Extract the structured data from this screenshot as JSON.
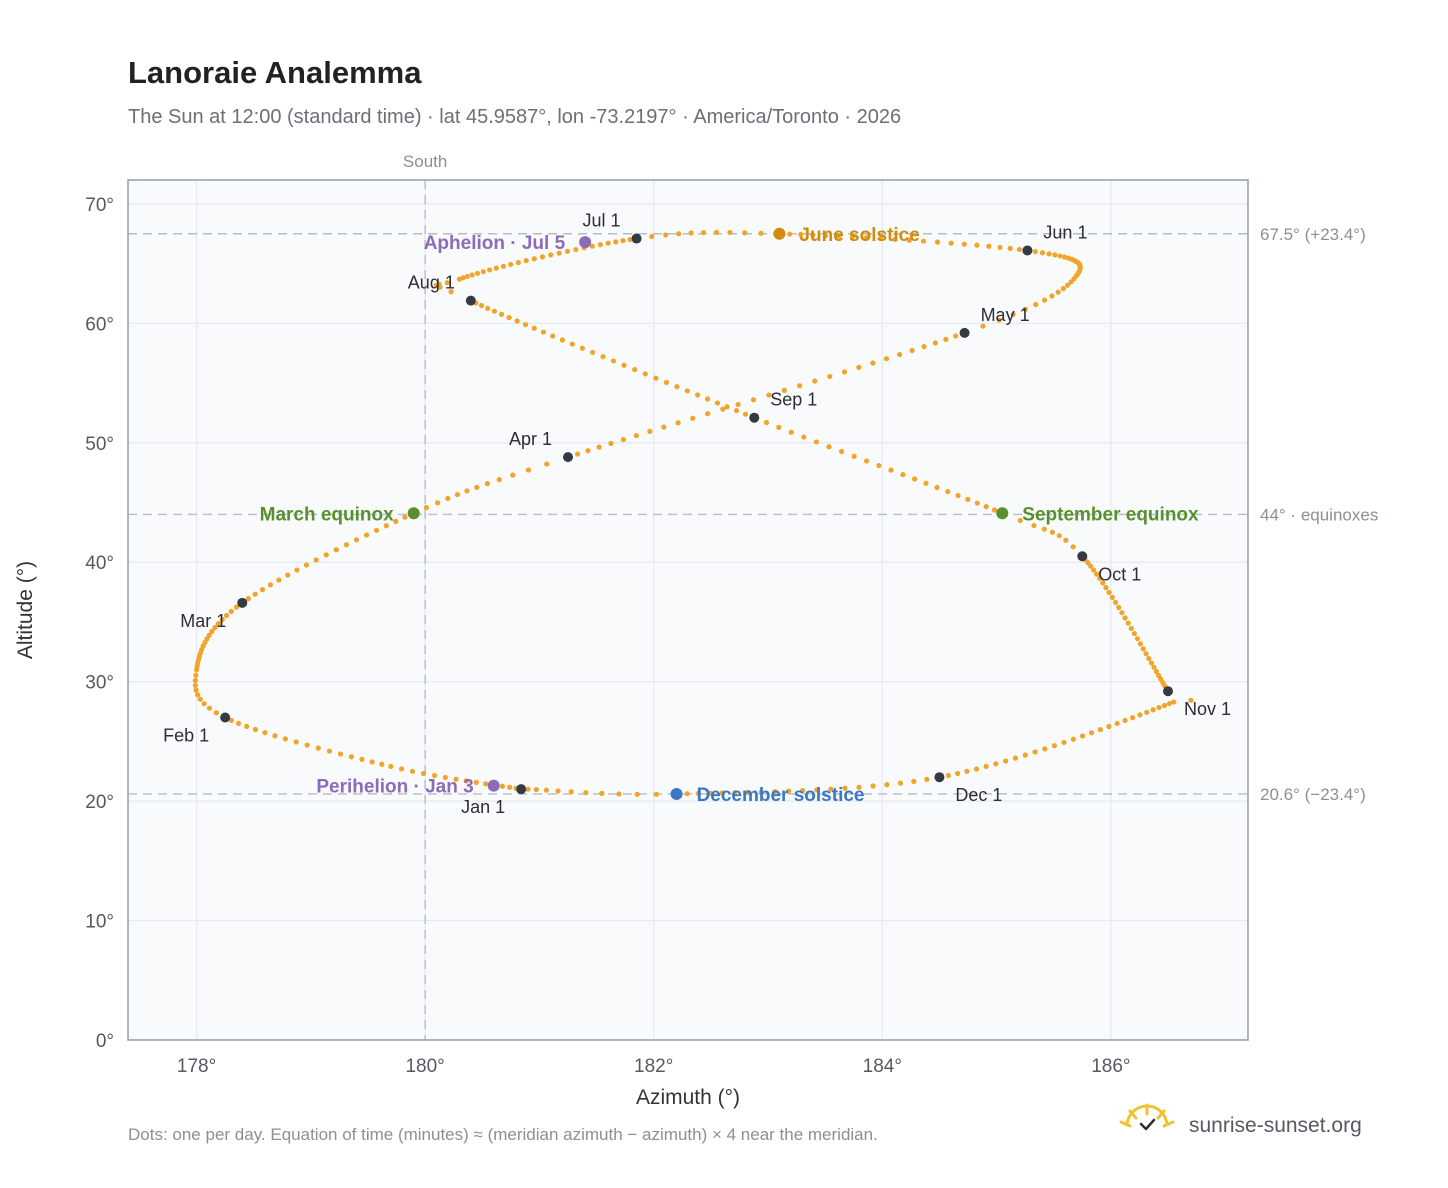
{
  "header": {
    "title": "Lanoraie Analemma",
    "subtitle": "The Sun at 12:00 (standard time) · lat 45.9587°, lon -73.2197° · America/Toronto · 2026"
  },
  "footer": {
    "note": "Dots: one per day. Equation of time (minutes) ≈ (meridian azimuth − azimuth) × 4 near the meridian.",
    "brand": "sunrise-sunset.org"
  },
  "colors": {
    "curve": "#f2a42a",
    "month_marker": "#343a40",
    "equinox": "#5a8f2e",
    "june_solstice": "#d08c0e",
    "december_solstice": "#3a78c3",
    "apsis": "#8e6bb8",
    "reference_line": "#b3bec9",
    "plot_bg": "#f8fafc",
    "grid": "#e4e9ee",
    "frame": "#9aa4b0"
  },
  "chart_data": {
    "type": "scatter",
    "title": "Lanoraie Analemma",
    "subtitle": "The Sun at 12:00 (standard time) · lat 45.9587°, lon -73.2197° · America/Toronto · 2026",
    "xlabel": "Azimuth (°)",
    "ylabel": "Altitude (°)",
    "xlim": [
      177.4,
      187.2
    ],
    "ylim": [
      0,
      72
    ],
    "xticks": [
      178,
      180,
      182,
      184,
      186
    ],
    "xtick_labels": [
      "178°",
      "180°",
      "182°",
      "184°",
      "186°"
    ],
    "yticks": [
      0,
      10,
      20,
      30,
      40,
      50,
      60,
      70
    ],
    "ytick_labels": [
      "0°",
      "10°",
      "20°",
      "30°",
      "40°",
      "50°",
      "60°",
      "70°"
    ],
    "grid": true,
    "meridian": {
      "azimuth": 180,
      "label": "South"
    },
    "reference_lines": [
      {
        "altitude": 67.5,
        "label": "67.5° (+23.4°)"
      },
      {
        "altitude": 44,
        "label": "44° · equinoxes"
      },
      {
        "altitude": 20.6,
        "label": "20.6° (−23.4°)"
      }
    ],
    "series": [
      {
        "marker": "daily-dots",
        "keyframes": [
          {
            "date": "2026-01-01",
            "az": 180.84,
            "alt": 21.0
          },
          {
            "date": "2026-01-15",
            "az": 179.7,
            "alt": 22.9
          },
          {
            "date": "2026-02-01",
            "az": 178.25,
            "alt": 27.0
          },
          {
            "date": "2026-02-11",
            "az": 178.0,
            "alt": 31.0
          },
          {
            "date": "2026-03-01",
            "az": 178.4,
            "alt": 36.6
          },
          {
            "date": "2026-03-20",
            "az": 179.9,
            "alt": 44.1
          },
          {
            "date": "2026-04-01",
            "az": 181.25,
            "alt": 48.8
          },
          {
            "date": "2026-05-01",
            "az": 184.72,
            "alt": 59.2
          },
          {
            "date": "2026-05-14",
            "az": 185.7,
            "alt": 64.0
          },
          {
            "date": "2026-06-01",
            "az": 185.27,
            "alt": 66.1
          },
          {
            "date": "2026-06-21",
            "az": 183.1,
            "alt": 67.5
          },
          {
            "date": "2026-07-01",
            "az": 181.85,
            "alt": 67.1
          },
          {
            "date": "2026-07-26",
            "az": 180.3,
            "alt": 63.7
          },
          {
            "date": "2026-08-01",
            "az": 180.4,
            "alt": 61.9
          },
          {
            "date": "2026-09-01",
            "az": 182.88,
            "alt": 52.1
          },
          {
            "date": "2026-09-23",
            "az": 185.05,
            "alt": 44.1
          },
          {
            "date": "2026-10-01",
            "az": 185.75,
            "alt": 40.5
          },
          {
            "date": "2026-11-01",
            "az": 186.5,
            "alt": 29.2
          },
          {
            "date": "2026-11-03",
            "az": 186.55,
            "alt": 28.3
          },
          {
            "date": "2026-12-01",
            "az": 184.5,
            "alt": 22.0
          },
          {
            "date": "2026-12-21",
            "az": 182.2,
            "alt": 20.6
          },
          {
            "date": "2026-12-31",
            "az": 180.9,
            "alt": 21.0
          }
        ]
      }
    ],
    "month_markers": [
      {
        "label": "Jan 1",
        "az": 180.84,
        "alt": 21.0,
        "label_pos": "below-left"
      },
      {
        "label": "Feb 1",
        "az": 178.25,
        "alt": 27.0,
        "label_pos": "below-left"
      },
      {
        "label": "Mar 1",
        "az": 178.4,
        "alt": 36.6,
        "label_pos": "below-left"
      },
      {
        "label": "Apr 1",
        "az": 181.25,
        "alt": 48.8,
        "label_pos": "above-left"
      },
      {
        "label": "May 1",
        "az": 184.72,
        "alt": 59.2,
        "label_pos": "above-right"
      },
      {
        "label": "Jun 1",
        "az": 185.27,
        "alt": 66.1,
        "label_pos": "above-right"
      },
      {
        "label": "Jul 1",
        "az": 181.85,
        "alt": 67.1,
        "label_pos": "above-left"
      },
      {
        "label": "Aug 1",
        "az": 180.4,
        "alt": 61.9,
        "label_pos": "above-left"
      },
      {
        "label": "Sep 1",
        "az": 182.88,
        "alt": 52.1,
        "label_pos": "above-right"
      },
      {
        "label": "Oct 1",
        "az": 185.75,
        "alt": 40.5,
        "label_pos": "below-right"
      },
      {
        "label": "Nov 1",
        "az": 186.5,
        "alt": 29.2,
        "label_pos": "below-right"
      },
      {
        "label": "Dec 1",
        "az": 184.5,
        "alt": 22.0,
        "label_pos": "below-right"
      }
    ],
    "events": [
      {
        "label": "March equinox",
        "az": 179.9,
        "alt": 44.1,
        "color_key": "equinox",
        "label_side": "left"
      },
      {
        "label": "September equinox",
        "az": 185.05,
        "alt": 44.1,
        "color_key": "equinox",
        "label_side": "right"
      },
      {
        "label": "June solstice",
        "az": 183.1,
        "alt": 67.5,
        "color_key": "june_solstice",
        "label_side": "right"
      },
      {
        "label": "December solstice",
        "az": 182.2,
        "alt": 20.6,
        "color_key": "december_solstice",
        "label_side": "right"
      },
      {
        "label": "Aphelion · Jul 5",
        "az": 181.4,
        "alt": 66.8,
        "color_key": "apsis",
        "label_side": "left"
      },
      {
        "label": "Perihelion · Jan 3",
        "az": 180.6,
        "alt": 21.3,
        "color_key": "apsis",
        "label_side": "left"
      }
    ]
  }
}
